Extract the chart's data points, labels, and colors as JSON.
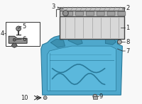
{
  "bg_color": "#f8f8f8",
  "line_color": "#222222",
  "tray_color": "#4fa8cc",
  "tray_dark": "#2a7a9a",
  "battery_face": "#c8c8c8",
  "battery_top": "#b0b0b0",
  "box_color": "#ffffff",
  "figsize": [
    2.0,
    1.47
  ],
  "dpi": 100
}
